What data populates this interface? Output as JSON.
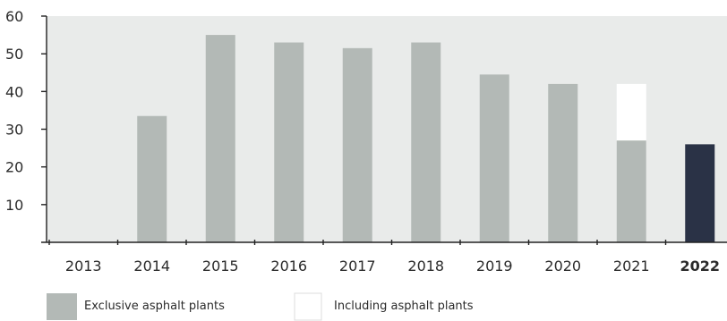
{
  "chart_data": {
    "type": "bar",
    "title": "",
    "xlabel": "",
    "ylabel": "",
    "ylim": [
      0,
      60
    ],
    "yticks": [
      10,
      20,
      30,
      40,
      50,
      60
    ],
    "categories": [
      "2013",
      "2014",
      "2015",
      "2016",
      "2017",
      "2018",
      "2019",
      "2020",
      "2021",
      "2022"
    ],
    "highlight_category": "2022",
    "series": [
      {
        "name": "Exclusive asphalt plants",
        "values": [
          null,
          33.5,
          55,
          53,
          51.5,
          53,
          44.5,
          42,
          27,
          null
        ]
      },
      {
        "name": "Including asphalt plants",
        "values": [
          null,
          null,
          null,
          null,
          null,
          null,
          null,
          null,
          42,
          null
        ]
      },
      {
        "name": "",
        "values": [
          null,
          null,
          null,
          null,
          null,
          null,
          null,
          null,
          null,
          26
        ]
      }
    ],
    "grid": false,
    "legend_position": "bottom-left"
  },
  "colors": {
    "plot_background": "#e9ebea",
    "bar_exclusive": "#b3b9b6",
    "bar_including": "#ffffff",
    "bar_highlight": "#2a3246",
    "axis": "#222222",
    "text": "#2b2b2b"
  }
}
